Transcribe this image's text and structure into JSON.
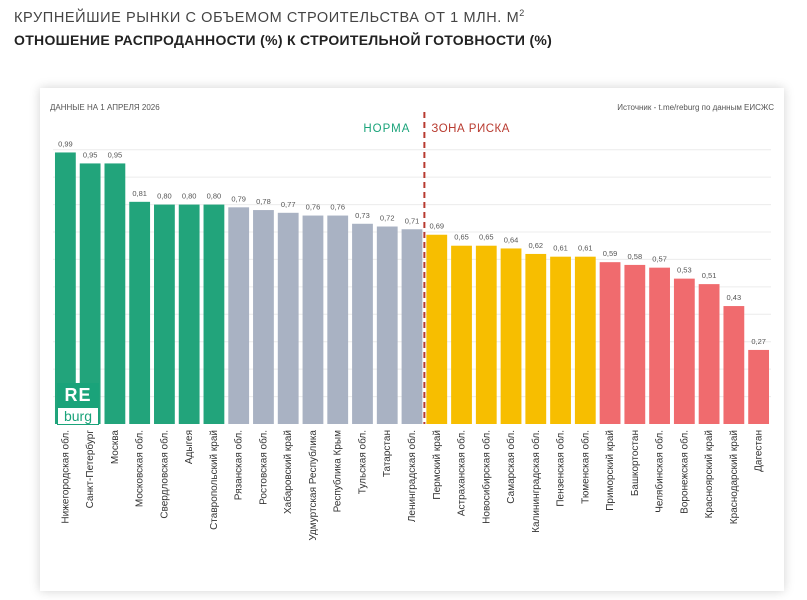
{
  "header": {
    "title": "КРУПНЕЙШИЕ РЫНКИ С ОБЪЕМОМ СТРОИТЕЛЬСТВА ОТ 1 МЛН. М",
    "title_sup": "2",
    "subtitle": "ОТНОШЕНИЕ РАСПРОДАННОСТИ (%) К СТРОИТЕЛЬНОЙ ГОТОВНОСТИ (%)"
  },
  "notes": {
    "date": "ДАННЫЕ НА 1 АПРЕЛЯ 2026",
    "source": "Источник - t.me/reburg по данным ЕИСЖС"
  },
  "zones": {
    "norm": "НОРМА",
    "risk": "ЗОНА РИСКА"
  },
  "logo": {
    "top": "RE",
    "bottom": "burg"
  },
  "colors": {
    "green": "#22a47b",
    "gray": "#a9b2c3",
    "yellow": "#f7be00",
    "red": "#f06b6e",
    "divider": "#b83a2f",
    "norm_text": "#1aa37a",
    "risk_text": "#b83a2f"
  },
  "chart_data": {
    "type": "bar",
    "title": "КРУПНЕЙШИЕ РЫНКИ С ОБЪЕМОМ СТРОИТЕЛЬСТВА ОТ 1 МЛН. М2",
    "subtitle": "ОТНОШЕНИЕ РАСПРОДАННОСТИ (%) К СТРОИТЕЛЬНОЙ ГОТОВНОСТИ (%)",
    "xlabel": "",
    "ylabel": "",
    "ylim": [
      0,
      1.05
    ],
    "grid": true,
    "legend": "none",
    "categories": [
      "Нижегородская обл.",
      "Санкт-Петербург",
      "Москва",
      "Московская обл.",
      "Свердловская обл.",
      "Адыгея",
      "Ставропольский край",
      "Рязанская обл.",
      "Ростовская обл.",
      "Хабаровский край",
      "Удмуртская Республика",
      "Республика Крым",
      "Тульская обл.",
      "Татарстан",
      "Ленинградская обл.",
      "Пермский край",
      "Астраханская обл.",
      "Новосибирская обл.",
      "Самарская обл.",
      "Калининградская обл.",
      "Пензенская обл.",
      "Тюменская обл.",
      "Приморский край",
      "Башкортостан",
      "Челябинская обл.",
      "Воронежская обл.",
      "Красноярский край",
      "Краснодарский край",
      "Дагестан"
    ],
    "values": [
      0.99,
      0.95,
      0.95,
      0.81,
      0.8,
      0.8,
      0.8,
      0.79,
      0.78,
      0.77,
      0.76,
      0.76,
      0.73,
      0.72,
      0.71,
      0.69,
      0.65,
      0.65,
      0.64,
      0.62,
      0.61,
      0.61,
      0.59,
      0.58,
      0.57,
      0.53,
      0.51,
      0.43,
      0.27
    ],
    "value_labels": [
      "0,99",
      "0,95",
      "0,95",
      "0,81",
      "0,80",
      "0,80",
      "0,80",
      "0,79",
      "0,78",
      "0,77",
      "0,76",
      "0,76",
      "0,73",
      "0,72",
      "0,71",
      "0,69",
      "0,65",
      "0,65",
      "0,64",
      "0,62",
      "0,61",
      "0,61",
      "0,59",
      "0,58",
      "0,57",
      "0,53",
      "0,51",
      "0,43",
      "0,27"
    ],
    "color_groups": [
      "green",
      "green",
      "green",
      "green",
      "green",
      "green",
      "green",
      "gray",
      "gray",
      "gray",
      "gray",
      "gray",
      "gray",
      "gray",
      "gray",
      "yellow",
      "yellow",
      "yellow",
      "yellow",
      "yellow",
      "yellow",
      "yellow",
      "red",
      "red",
      "red",
      "red",
      "red",
      "red",
      "red"
    ],
    "risk_threshold_index": 15
  }
}
